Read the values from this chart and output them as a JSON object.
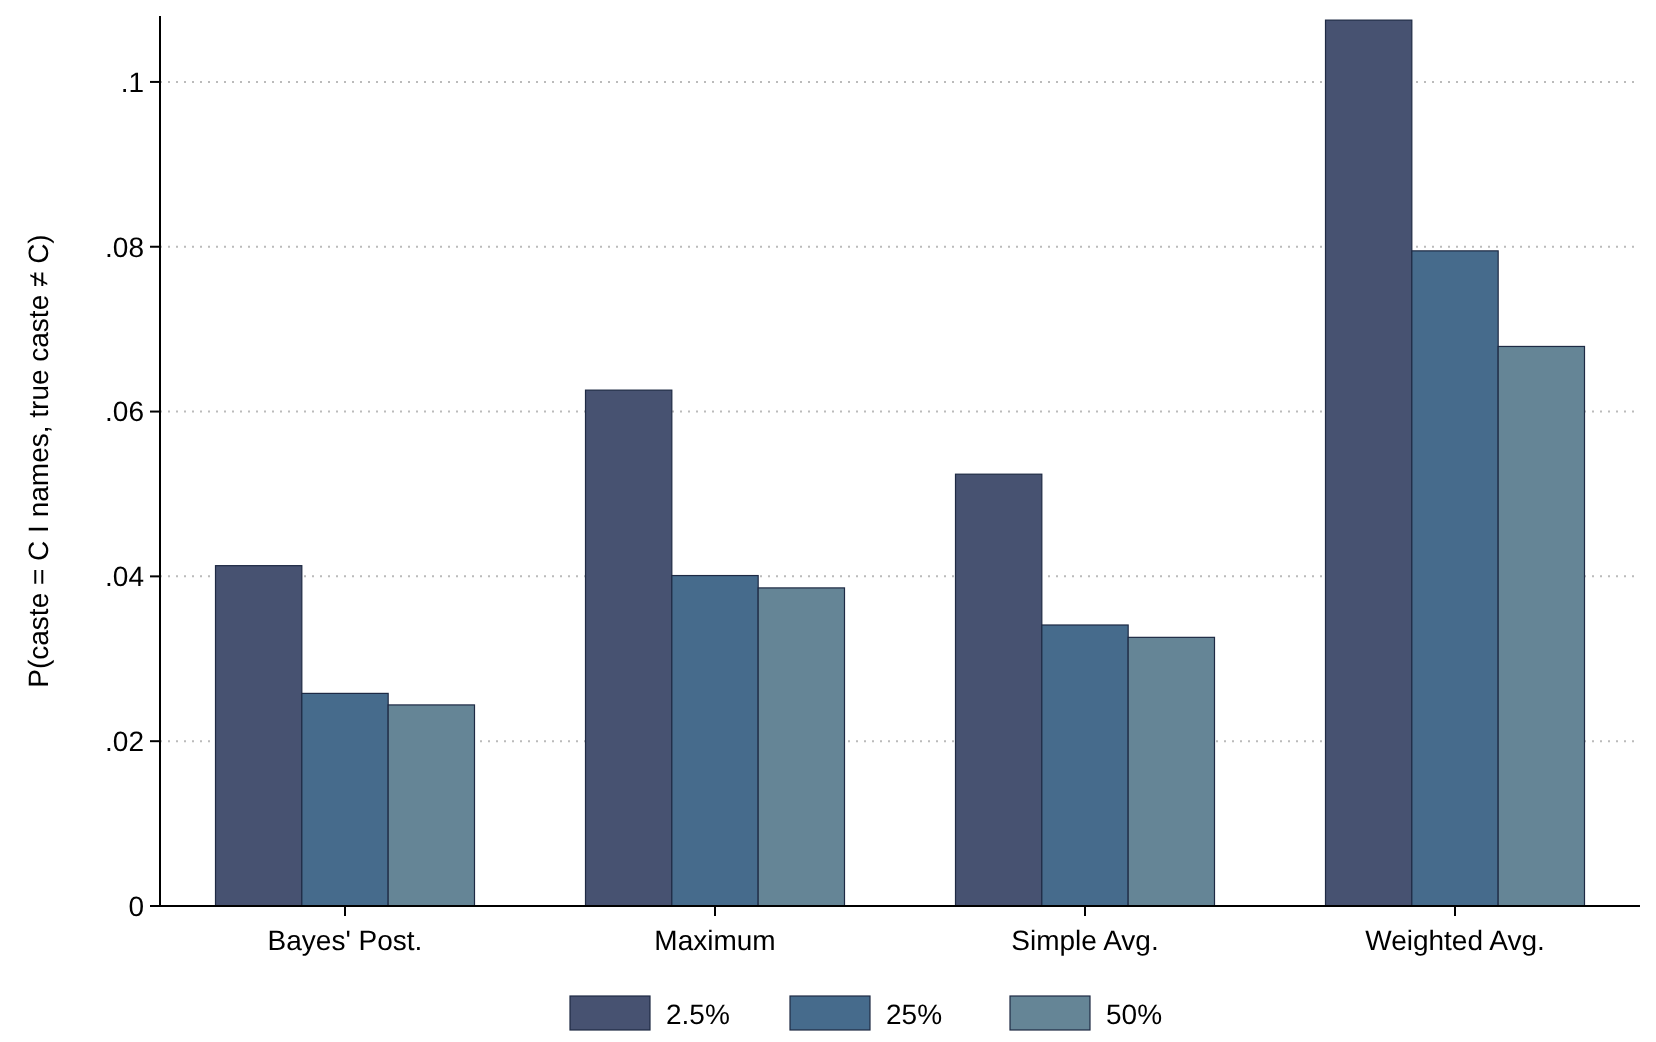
{
  "chart_data": {
    "type": "bar",
    "ylabel": "P(caste = C I names, true caste ≠ C)",
    "categories": [
      "Bayes' Post.",
      "Maximum",
      "Simple Avg.",
      "Weighted Avg."
    ],
    "series": [
      {
        "name": "2.5%",
        "color": "#475271",
        "values": [
          0.0413,
          0.0626,
          0.0524,
          0.1075
        ]
      },
      {
        "name": "25%",
        "color": "#466b8c",
        "values": [
          0.0258,
          0.0401,
          0.0341,
          0.0795
        ]
      },
      {
        "name": "50%",
        "color": "#658596",
        "values": [
          0.0244,
          0.0386,
          0.0326,
          0.0679
        ]
      }
    ],
    "ylim": [
      0,
      0.108
    ],
    "yticks": [
      0,
      {
        "value": 0.02,
        "label": ".02"
      },
      {
        "value": 0.04,
        "label": ".04"
      },
      {
        "value": 0.06,
        "label": ".06"
      },
      {
        "value": 0.08,
        "label": ".08"
      },
      {
        "value": 0.1,
        "label": ".1"
      }
    ],
    "grid": "y",
    "legend": "bottom"
  }
}
